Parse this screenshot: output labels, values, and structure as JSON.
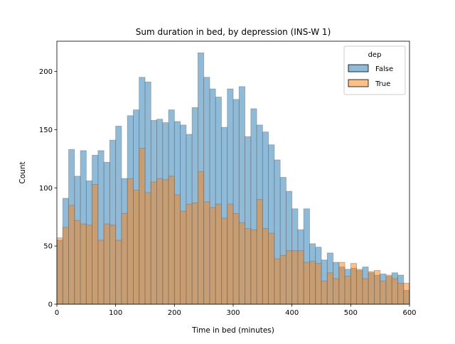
{
  "chart_data": {
    "type": "bar",
    "title": "Sum duration in bed, by depression (INS-W 1)",
    "xlabel": "Time in bed (minutes)",
    "ylabel": "Count",
    "xlim": [
      0,
      600
    ],
    "ylim": [
      0,
      226
    ],
    "bin_width": 10,
    "x_ticks": [
      0,
      100,
      200,
      300,
      400,
      500,
      600
    ],
    "y_ticks": [
      0,
      50,
      100,
      150,
      200
    ],
    "legend": {
      "title": "dep",
      "position": "top-right"
    },
    "series": [
      {
        "name": "False",
        "color": "#1f77b4",
        "values": [
          55,
          91,
          133,
          110,
          132,
          106,
          128,
          132,
          122,
          141,
          153,
          108,
          162,
          167,
          195,
          191,
          158,
          159,
          156,
          167,
          157,
          154,
          146,
          169,
          216,
          195,
          185,
          178,
          152,
          185,
          176,
          187,
          144,
          168,
          154,
          148,
          137,
          124,
          109,
          97,
          82,
          64,
          82,
          52,
          49,
          38,
          44,
          36,
          32,
          30,
          31,
          29,
          32,
          27,
          25,
          26,
          24,
          27,
          25,
          12
        ]
      },
      {
        "name": "True",
        "color": "#ff7f0e",
        "values": [
          57,
          66,
          85,
          72,
          69,
          68,
          103,
          55,
          69,
          68,
          55,
          78,
          108,
          98,
          134,
          96,
          105,
          108,
          107,
          110,
          94,
          80,
          86,
          87,
          114,
          88,
          83,
          86,
          74,
          86,
          78,
          70,
          65,
          64,
          90,
          65,
          61,
          39,
          42,
          46,
          46,
          46,
          36,
          37,
          35,
          20,
          27,
          22,
          36,
          24,
          35,
          30,
          22,
          28,
          29,
          20,
          25,
          22,
          18,
          18
        ]
      }
    ]
  }
}
